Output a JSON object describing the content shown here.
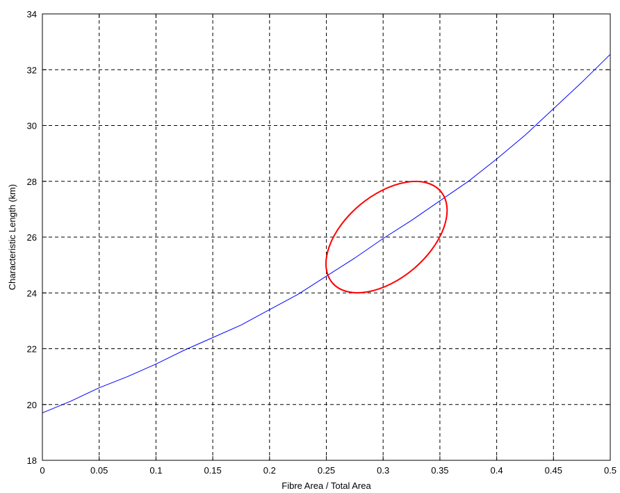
{
  "chart_data": {
    "type": "line",
    "xlabel": "Fibre Area / Total Area",
    "ylabel": "Characteristic Length (km)",
    "xlim": [
      0,
      0.5
    ],
    "ylim": [
      18,
      34
    ],
    "x_ticks": [
      0,
      0.05,
      0.1,
      0.15,
      0.2,
      0.25,
      0.3,
      0.35,
      0.4,
      0.45,
      0.5
    ],
    "x_tick_labels": [
      "0",
      "0.05",
      "0.1",
      "0.15",
      "0.2",
      "0.25",
      "0.3",
      "0.35",
      "0.4",
      "0.45",
      "0.5"
    ],
    "y_ticks": [
      18,
      20,
      22,
      24,
      26,
      28,
      30,
      32,
      34
    ],
    "y_tick_labels": [
      "18",
      "20",
      "22",
      "24",
      "26",
      "28",
      "30",
      "32",
      "34"
    ],
    "grid": true,
    "grid_style": "dashed",
    "series": [
      {
        "color": "#0000ff",
        "x": [
          0,
          0.025,
          0.05,
          0.075,
          0.1,
          0.125,
          0.15,
          0.175,
          0.2,
          0.225,
          0.25,
          0.275,
          0.3,
          0.325,
          0.35,
          0.375,
          0.4,
          0.425,
          0.45,
          0.475,
          0.5
        ],
        "y": [
          19.7,
          20.12,
          20.6,
          21.0,
          21.45,
          21.95,
          22.4,
          22.85,
          23.4,
          23.95,
          24.6,
          25.25,
          25.95,
          26.6,
          27.3,
          28.0,
          28.8,
          29.65,
          30.6,
          31.55,
          32.55
        ]
      }
    ],
    "annotations": [
      {
        "type": "ellipse",
        "color": "#ff0000",
        "center": [
          0.303,
          26.0
        ],
        "note": "highlight region around x 0.25-0.36"
      }
    ]
  }
}
